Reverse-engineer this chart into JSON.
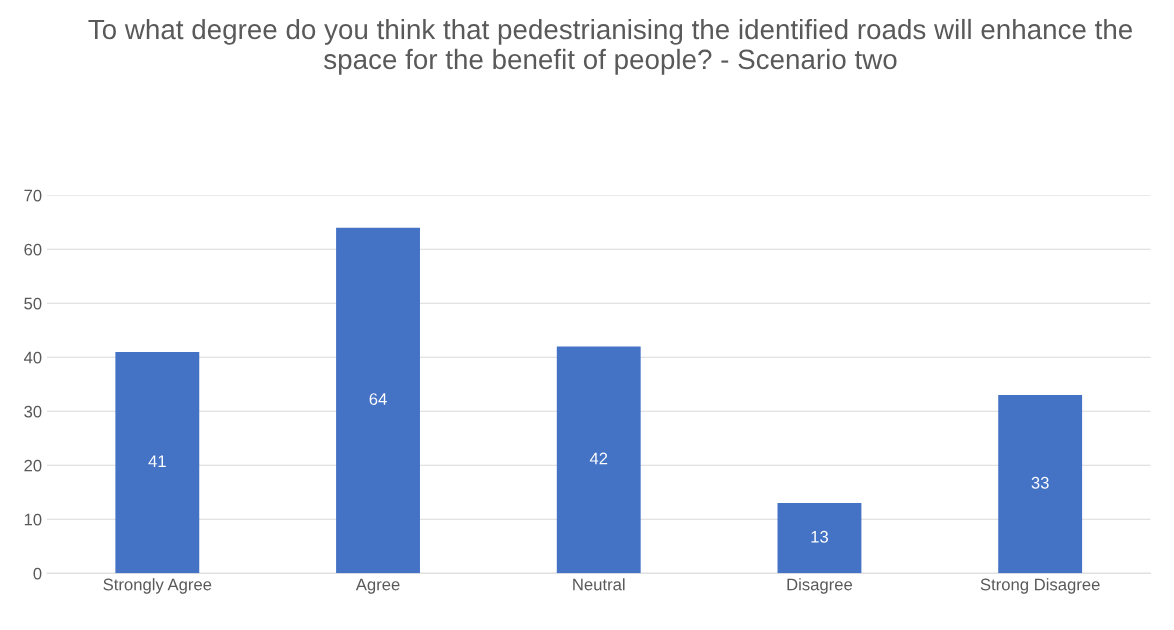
{
  "chart_data": {
    "type": "bar",
    "title": "To what degree do you think that pedestrianising the identified roads will enhance the space for the benefit of people? - Scenario two",
    "categories": [
      "Strongly Agree",
      "Agree",
      "Neutral",
      "Disagree",
      "Strong Disagree"
    ],
    "values": [
      41,
      64,
      42,
      13,
      33
    ],
    "color": "#4472c4",
    "ylim": [
      0,
      70
    ],
    "yticks": [
      0,
      10,
      20,
      30,
      40,
      50,
      60,
      70
    ],
    "grid": "y",
    "data_labels": true
  }
}
